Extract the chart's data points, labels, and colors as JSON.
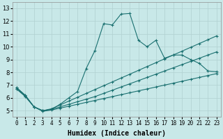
{
  "xlabel": "Humidex (Indice chaleur)",
  "bg_color": "#c8e8e8",
  "line_color": "#1a7070",
  "grid_color": "#b0d0d0",
  "xlim": [
    -0.5,
    23.5
  ],
  "ylim": [
    4.5,
    13.5
  ],
  "xticks": [
    0,
    1,
    2,
    3,
    4,
    5,
    6,
    7,
    8,
    9,
    10,
    11,
    12,
    13,
    14,
    15,
    16,
    17,
    18,
    19,
    20,
    21,
    22,
    23
  ],
  "yticks": [
    5,
    6,
    7,
    8,
    9,
    10,
    11,
    12,
    13
  ],
  "x_values": [
    0,
    1,
    2,
    3,
    4,
    5,
    6,
    7,
    8,
    9,
    10,
    11,
    12,
    13,
    14,
    15,
    16,
    17,
    18,
    19,
    20,
    21,
    22,
    23
  ],
  "series": [
    {
      "y": [
        6.8,
        6.2,
        5.3,
        5.0,
        5.1,
        5.5,
        6.0,
        6.5,
        8.3,
        9.7,
        11.8,
        11.7,
        12.55,
        12.6,
        10.5,
        10.0,
        10.5,
        9.1,
        9.35,
        9.35,
        9.0,
        8.7,
        8.1,
        8.05
      ],
      "has_markers": true
    },
    {
      "y": [
        6.8,
        6.2,
        5.3,
        5.0,
        5.15,
        5.45,
        5.75,
        6.05,
        6.35,
        6.65,
        6.95,
        7.25,
        7.55,
        7.85,
        8.15,
        8.45,
        8.75,
        9.05,
        9.35,
        9.65,
        9.95,
        10.25,
        10.55,
        10.85
      ],
      "has_markers": true
    },
    {
      "y": [
        6.7,
        6.15,
        5.3,
        5.0,
        5.1,
        5.3,
        5.5,
        5.7,
        5.9,
        6.1,
        6.35,
        6.6,
        6.85,
        7.1,
        7.35,
        7.6,
        7.85,
        8.1,
        8.35,
        8.6,
        8.85,
        9.1,
        9.35,
        9.6
      ],
      "has_markers": true
    },
    {
      "y": [
        6.7,
        6.1,
        5.3,
        4.95,
        5.05,
        5.2,
        5.35,
        5.5,
        5.65,
        5.8,
        5.95,
        6.1,
        6.25,
        6.4,
        6.55,
        6.7,
        6.85,
        7.0,
        7.15,
        7.3,
        7.45,
        7.6,
        7.75,
        7.9
      ],
      "has_markers": true
    }
  ]
}
